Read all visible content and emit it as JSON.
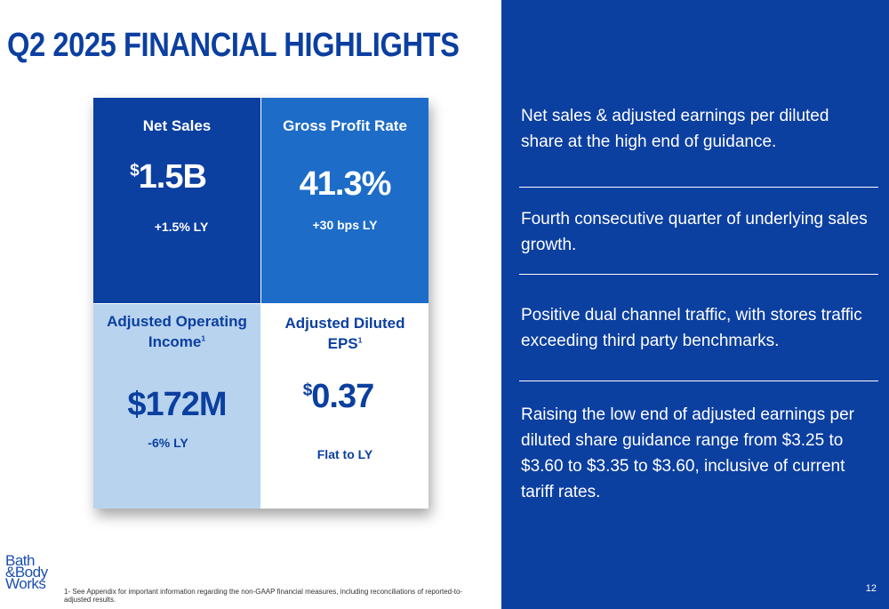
{
  "title": "Q2 2025 FINANCIAL HIGHLIGHTS",
  "tiles": {
    "net_sales": {
      "label": "Net Sales",
      "currency": "$",
      "value": "1.5B",
      "change": "+1.5% LY"
    },
    "gross_profit": {
      "label": "Gross Profit Rate",
      "value": "41.3%",
      "change": "+30 bps LY"
    },
    "operating_income": {
      "label_line1": "Adjusted Operating",
      "label_line2": "Income",
      "footnote": "1",
      "value": "$172M",
      "change": "-6% LY"
    },
    "eps": {
      "label_line1": "Adjusted Diluted",
      "label_line2": "EPS",
      "footnote": "1",
      "currency": "$",
      "value": "0.37",
      "change": "Flat to LY"
    }
  },
  "highlights": [
    "Net sales & adjusted earnings  per diluted share at the high end of guidance.",
    "Fourth consecutive quarter of underlying sales growth.",
    "Positive dual channel traffic, with stores traffic exceeding third party benchmarks.",
    "Raising the low end of adjusted earnings per diluted share guidance range from $3.25 to $3.60 to $3.35 to $3.60, inclusive of current tariff rates."
  ],
  "footnote": "1- See Appendix for important information regarding the non-GAAP financial measures, including reconciliations of reported-to-adjusted results.",
  "page_number": "12",
  "logo": {
    "line1": "Bath",
    "line2": "&Body",
    "line3": "Works"
  },
  "colors": {
    "navy": "#0b3fa0",
    "mid_blue": "#1d6cc7",
    "light_blue": "#b8d3ee"
  }
}
